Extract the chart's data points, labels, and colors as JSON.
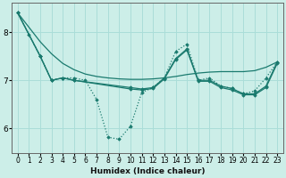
{
  "xlabel": "Humidex (Indice chaleur)",
  "background_color": "#cceee8",
  "grid_color": "#aaddd8",
  "line_color": "#1a7a6e",
  "xlim": [
    -0.5,
    23.5
  ],
  "ylim": [
    5.5,
    8.6
  ],
  "yticks": [
    6,
    7,
    8
  ],
  "xticks": [
    0,
    1,
    2,
    3,
    4,
    5,
    6,
    7,
    8,
    9,
    10,
    11,
    12,
    13,
    14,
    15,
    16,
    17,
    18,
    19,
    20,
    21,
    22,
    23
  ],
  "series_dotted": {
    "x": [
      0,
      1,
      2,
      3,
      4,
      5,
      6,
      7,
      8,
      9,
      10,
      11,
      12,
      13,
      14,
      15,
      16,
      17,
      18,
      19,
      20,
      21,
      22,
      23
    ],
    "y": [
      8.4,
      7.95,
      7.5,
      7.0,
      7.05,
      7.05,
      7.0,
      6.6,
      5.82,
      5.78,
      6.05,
      6.75,
      6.85,
      7.05,
      7.6,
      7.75,
      7.0,
      7.05,
      6.88,
      6.83,
      6.72,
      6.78,
      7.05,
      7.38
    ]
  },
  "series_line1": {
    "x": [
      0,
      2,
      3,
      4,
      5,
      10,
      11,
      12,
      13,
      14,
      15,
      16,
      17,
      18,
      19,
      20,
      21,
      22,
      23
    ],
    "y": [
      8.4,
      7.5,
      7.0,
      7.05,
      7.0,
      6.85,
      6.82,
      6.85,
      7.05,
      7.45,
      7.65,
      7.0,
      7.0,
      6.88,
      6.83,
      6.72,
      6.72,
      6.88,
      7.38
    ]
  },
  "series_line2": {
    "x": [
      0,
      2,
      3,
      4,
      5,
      10,
      11,
      12,
      13,
      14,
      15,
      16,
      17,
      18,
      19,
      20,
      21,
      22,
      23
    ],
    "y": [
      8.4,
      7.5,
      7.0,
      7.05,
      7.0,
      6.82,
      6.8,
      6.83,
      7.03,
      7.43,
      7.63,
      6.98,
      6.98,
      6.85,
      6.8,
      6.7,
      6.7,
      6.85,
      7.35
    ]
  },
  "series_smooth": {
    "x": [
      0,
      1,
      2,
      3,
      4,
      5,
      6,
      7,
      8,
      9,
      10,
      11,
      12,
      13,
      14,
      15,
      16,
      17,
      18,
      19,
      20,
      21,
      22,
      23
    ],
    "y": [
      8.4,
      8.1,
      7.8,
      7.55,
      7.35,
      7.22,
      7.13,
      7.08,
      7.05,
      7.03,
      7.02,
      7.02,
      7.03,
      7.05,
      7.08,
      7.12,
      7.15,
      7.17,
      7.18,
      7.18,
      7.18,
      7.2,
      7.27,
      7.38
    ]
  }
}
